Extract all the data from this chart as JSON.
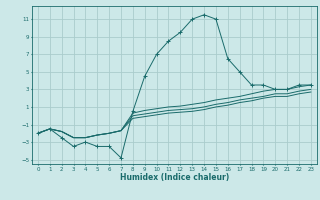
{
  "xlabel": "Humidex (Indice chaleur)",
  "ylabel": "",
  "bg_color": "#cce8e8",
  "grid_color": "#aacccc",
  "line_color": "#1a6b6b",
  "xlim": [
    -0.5,
    23.5
  ],
  "ylim": [
    -5.5,
    12.5
  ],
  "xticks": [
    0,
    1,
    2,
    3,
    4,
    5,
    6,
    7,
    8,
    9,
    10,
    11,
    12,
    13,
    14,
    15,
    16,
    17,
    18,
    19,
    20,
    21,
    22,
    23
  ],
  "yticks": [
    -5,
    -3,
    -1,
    1,
    3,
    5,
    7,
    9,
    11
  ],
  "series": [
    {
      "x": [
        0,
        1,
        2,
        3,
        4,
        5,
        6,
        7,
        8,
        9,
        10,
        11,
        12,
        13,
        14,
        15,
        16,
        17,
        18,
        19,
        20,
        21,
        22,
        23
      ],
      "y": [
        -2,
        -1.5,
        -2.5,
        -3.5,
        -3,
        -3.5,
        -3.5,
        -4.8,
        0.5,
        4.5,
        7,
        8.5,
        9.5,
        11,
        11.5,
        11,
        6.5,
        5,
        3.5,
        3.5,
        3,
        3,
        3.5,
        3.5
      ],
      "marker": "+"
    },
    {
      "x": [
        0,
        1,
        2,
        3,
        4,
        5,
        6,
        7,
        8,
        9,
        10,
        11,
        12,
        13,
        14,
        15,
        16,
        17,
        18,
        19,
        20,
        21,
        22,
        23
      ],
      "y": [
        -2,
        -1.5,
        -1.8,
        -2.5,
        -2.5,
        -2.2,
        -2.0,
        -1.7,
        0.3,
        0.6,
        0.8,
        1.0,
        1.1,
        1.3,
        1.5,
        1.8,
        2.0,
        2.2,
        2.5,
        2.8,
        3.0,
        3.0,
        3.3,
        3.5
      ],
      "marker": null
    },
    {
      "x": [
        0,
        1,
        2,
        3,
        4,
        5,
        6,
        7,
        8,
        9,
        10,
        11,
        12,
        13,
        14,
        15,
        16,
        17,
        18,
        19,
        20,
        21,
        22,
        23
      ],
      "y": [
        -2,
        -1.5,
        -1.8,
        -2.5,
        -2.5,
        -2.2,
        -2.0,
        -1.7,
        0.0,
        0.2,
        0.4,
        0.6,
        0.7,
        0.8,
        1.0,
        1.3,
        1.5,
        1.8,
        2.0,
        2.2,
        2.5,
        2.5,
        2.8,
        3.0
      ],
      "marker": null
    },
    {
      "x": [
        0,
        1,
        2,
        3,
        4,
        5,
        6,
        7,
        8,
        9,
        10,
        11,
        12,
        13,
        14,
        15,
        16,
        17,
        18,
        19,
        20,
        21,
        22,
        23
      ],
      "y": [
        -2,
        -1.5,
        -1.8,
        -2.5,
        -2.5,
        -2.2,
        -2.0,
        -1.7,
        -0.3,
        -0.1,
        0.1,
        0.3,
        0.4,
        0.5,
        0.7,
        1.0,
        1.2,
        1.5,
        1.7,
        2.0,
        2.2,
        2.2,
        2.5,
        2.7
      ],
      "marker": null
    }
  ]
}
